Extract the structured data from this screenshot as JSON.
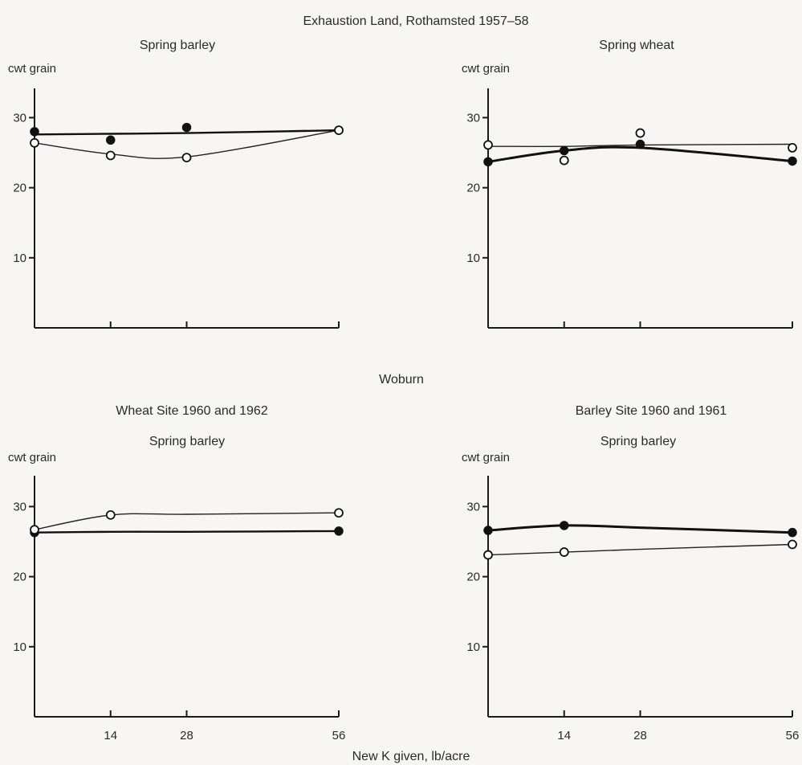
{
  "figure": {
    "top_title": "Exhaustion Land, Rothamsted 1957–58",
    "mid_title": "Woburn",
    "xlabel": "New K given, lb/acre"
  },
  "chart_data": [
    {
      "type": "line",
      "subtitle": "Spring barley",
      "ylabel": "cwt grain",
      "yticks": [
        10,
        20,
        30
      ],
      "ylim": [
        0,
        35
      ],
      "x": [
        0,
        14,
        28,
        56
      ],
      "xticks": [],
      "series": [
        {
          "marker": "filled",
          "values": [
            28.0,
            26.8,
            28.6,
            28.2
          ],
          "fit": [
            27.6,
            27.7,
            27.8,
            28.2
          ]
        },
        {
          "marker": "open",
          "values": [
            26.4,
            24.6,
            24.3,
            28.2
          ],
          "fit": [
            26.4,
            24.8,
            24.4,
            28.2
          ]
        }
      ]
    },
    {
      "type": "line",
      "subtitle": "Spring wheat",
      "ylabel": "cwt grain",
      "yticks": [
        10,
        20,
        30
      ],
      "ylim": [
        0,
        35
      ],
      "x": [
        0,
        14,
        28,
        56
      ],
      "xticks": [],
      "series": [
        {
          "marker": "filled",
          "values": [
            23.7,
            25.3,
            26.2,
            23.8
          ],
          "fit": [
            23.7,
            25.3,
            25.7,
            23.8
          ]
        },
        {
          "marker": "open",
          "values": [
            26.1,
            23.9,
            27.8,
            25.7
          ],
          "fit": [
            25.9,
            25.9,
            26.1,
            26.2
          ]
        }
      ]
    },
    {
      "type": "line",
      "panel_title": "Wheat Site 1960 and 1962",
      "subtitle": "Spring barley",
      "ylabel": "cwt grain",
      "yticks": [
        10,
        20,
        30
      ],
      "ylim": [
        0,
        35
      ],
      "x": [
        0,
        14,
        28,
        56
      ],
      "xticks": [
        "14",
        "28",
        "56"
      ],
      "series": [
        {
          "marker": "filled",
          "values": [
            26.3,
            null,
            null,
            26.5
          ],
          "fit": [
            26.3,
            26.4,
            26.4,
            26.5
          ]
        },
        {
          "marker": "open",
          "values": [
            26.7,
            28.8,
            null,
            29.1
          ],
          "fit": [
            26.7,
            28.8,
            28.9,
            29.1
          ]
        }
      ]
    },
    {
      "type": "line",
      "panel_title": "Barley Site 1960 and 1961",
      "subtitle": "Spring barley",
      "ylabel": "cwt grain",
      "yticks": [
        10,
        20,
        30
      ],
      "ylim": [
        0,
        35
      ],
      "x": [
        0,
        14,
        28,
        56
      ],
      "xticks": [
        "14",
        "28",
        "56"
      ],
      "series": [
        {
          "marker": "filled",
          "values": [
            26.6,
            27.3,
            null,
            26.3
          ],
          "fit": [
            26.6,
            27.3,
            27.0,
            26.3
          ]
        },
        {
          "marker": "open",
          "values": [
            23.1,
            23.5,
            null,
            24.6
          ],
          "fit": [
            23.1,
            23.5,
            23.9,
            24.6
          ]
        }
      ]
    }
  ]
}
